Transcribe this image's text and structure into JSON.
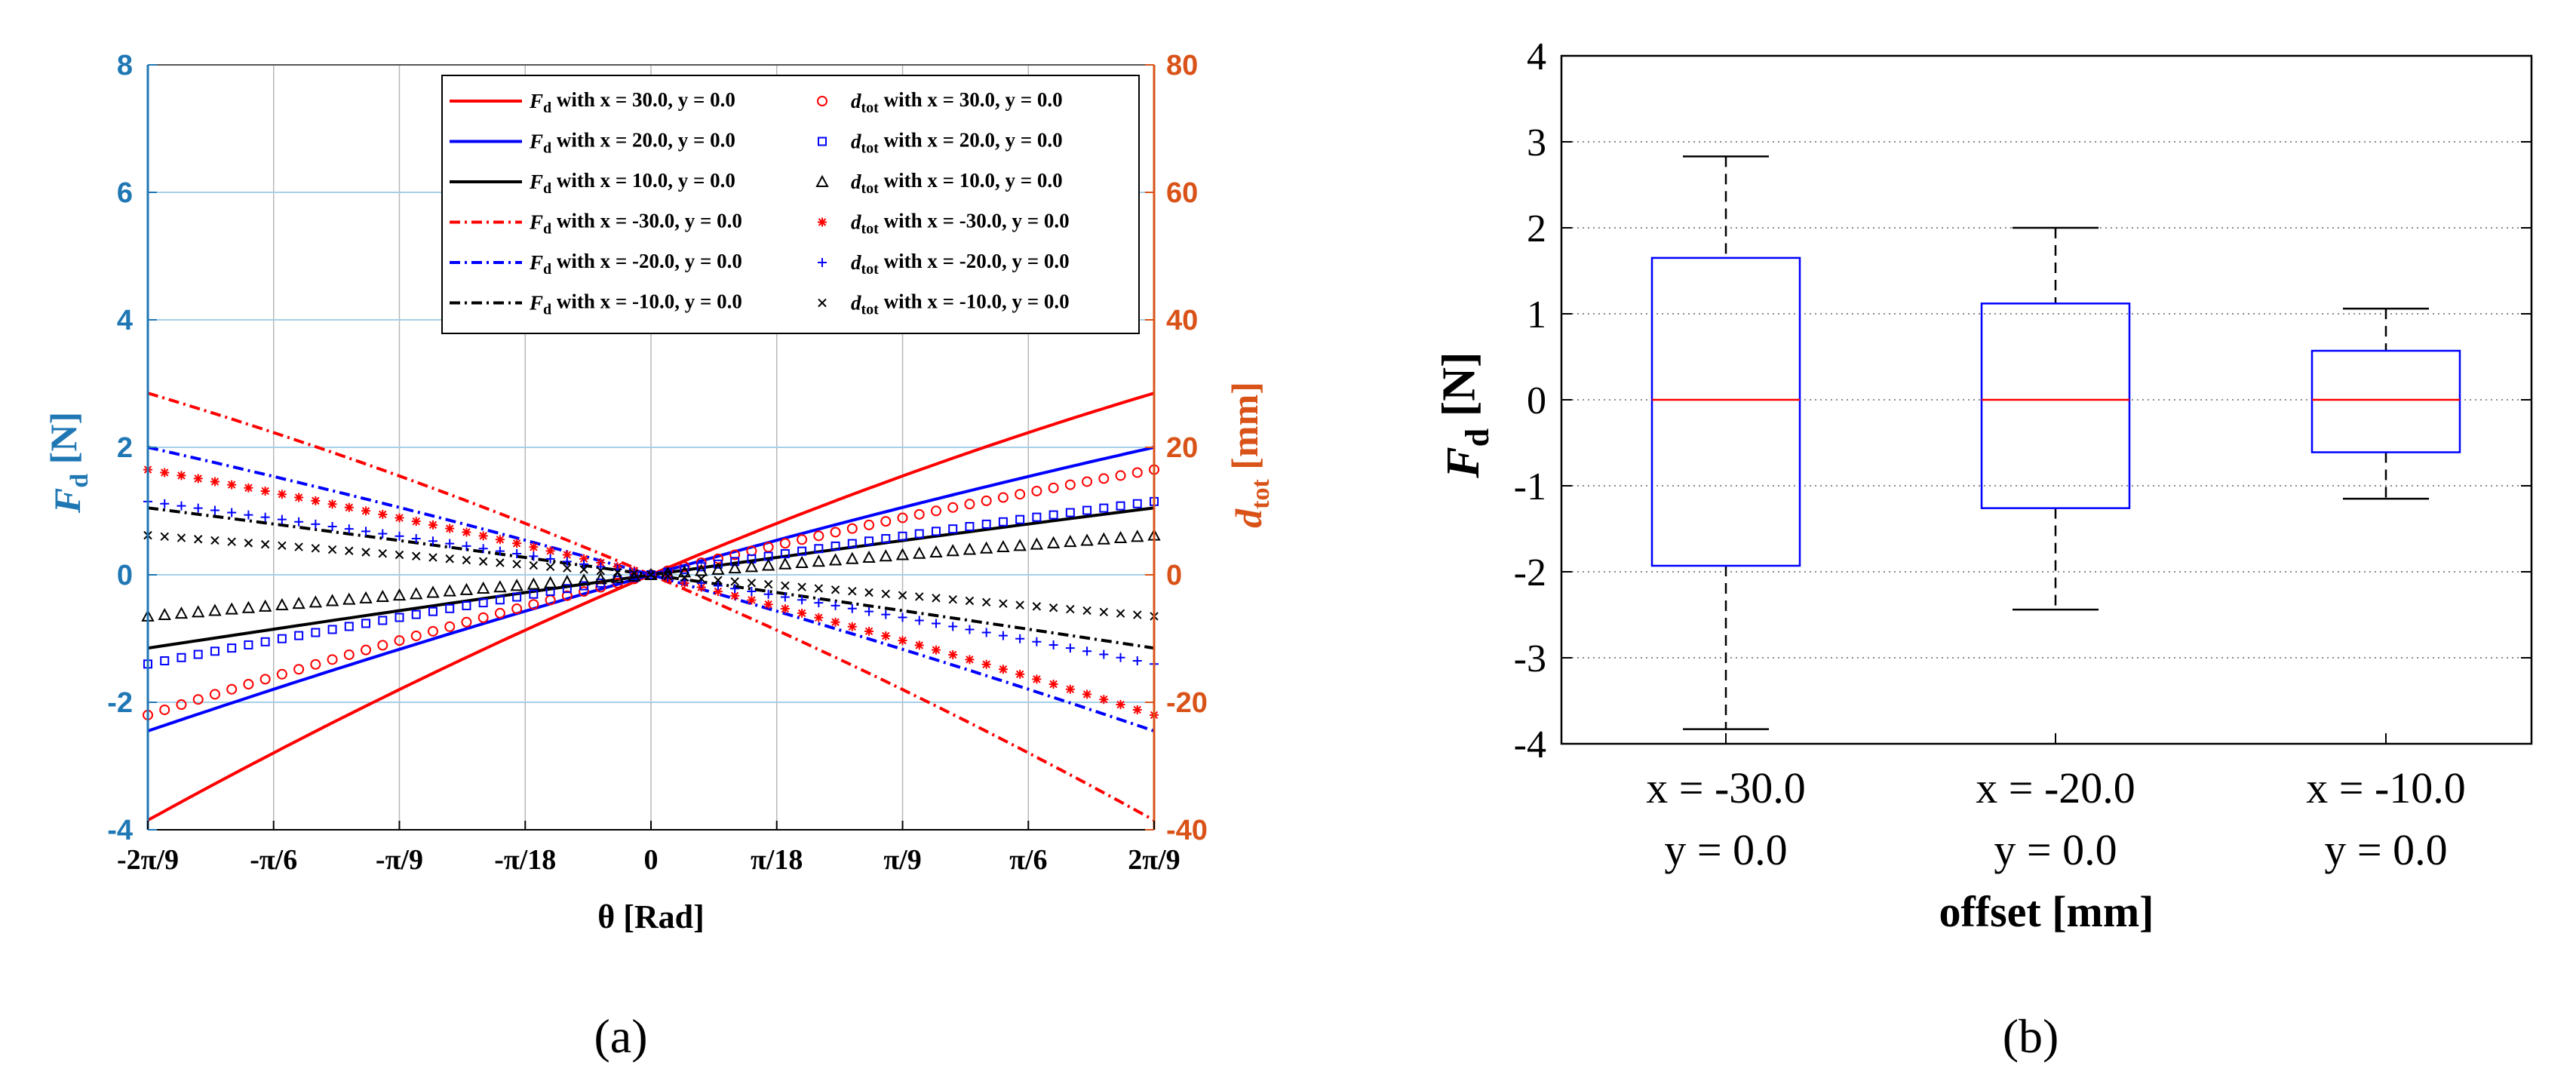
{
  "chart_data": [
    {
      "type": "line",
      "panel_label": "(a)",
      "xlabel": "θ [Rad]",
      "ylabel_left": {
        "main": "F",
        "sub": "d",
        "unit": " [N]"
      },
      "ylabel_right": {
        "main": "d",
        "sub": "tot",
        "unit": " [mm]"
      },
      "xlim": [
        -0.6981,
        0.6981
      ],
      "ylim_left": [
        -4,
        8
      ],
      "ylim_right": [
        -40,
        80
      ],
      "grid": true,
      "legend_position": "top-right",
      "colors": {
        "left_axis": "#1f77b4",
        "right_axis": "#d95319",
        "red": "#ff0000",
        "blue": "#0000ff",
        "black": "#000000",
        "grid": "#a6cfe8"
      },
      "x_ticks": [
        {
          "value": -0.6981,
          "label": "-2π/9"
        },
        {
          "value": -0.5236,
          "label": "-π/6"
        },
        {
          "value": -0.3491,
          "label": "-π/9"
        },
        {
          "value": -0.1745,
          "label": "-π/18"
        },
        {
          "value": 0,
          "label": "0"
        },
        {
          "value": 0.1745,
          "label": "π/18"
        },
        {
          "value": 0.3491,
          "label": "π/9"
        },
        {
          "value": 0.5236,
          "label": "π/6"
        },
        {
          "value": 0.6981,
          "label": "2π/9"
        }
      ],
      "y_ticks_left": [
        "-4",
        "-2",
        "0",
        "2",
        "4",
        "6",
        "8"
      ],
      "y_ticks_right": [
        "-40",
        "-20",
        "0",
        "20",
        "40",
        "60",
        "80"
      ],
      "series": [
        {
          "name_main": "F",
          "name_sub": "d",
          "name_rest": " with  x = 30.0, y = 0.0",
          "axis": "left",
          "color": "red",
          "style": "solid",
          "values_at_ends": [
            -3.85,
            2.85
          ]
        },
        {
          "name_main": "F",
          "name_sub": "d",
          "name_rest": " with  x = 20.0, y = 0.0",
          "axis": "left",
          "color": "blue",
          "style": "solid",
          "values_at_ends": [
            -2.45,
            2.0
          ]
        },
        {
          "name_main": "F",
          "name_sub": "d",
          "name_rest": " with x = 10.0, y = 0.0",
          "axis": "left",
          "color": "black",
          "style": "solid",
          "values_at_ends": [
            -1.15,
            1.05
          ]
        },
        {
          "name_main": "F",
          "name_sub": "d",
          "name_rest": " with x = -30.0, y = 0.0",
          "axis": "left",
          "color": "red",
          "style": "dashdot",
          "values_at_ends": [
            2.85,
            -3.85
          ]
        },
        {
          "name_main": "F",
          "name_sub": "d",
          "name_rest": " with x = -20.0, y = 0.0",
          "axis": "left",
          "color": "blue",
          "style": "dashdot",
          "values_at_ends": [
            2.0,
            -2.45
          ]
        },
        {
          "name_main": "F",
          "name_sub": "d",
          "name_rest": " with x = -10.0, y = 0.0",
          "axis": "left",
          "color": "black",
          "style": "dashdot",
          "values_at_ends": [
            1.05,
            -1.15
          ]
        },
        {
          "name_main": "d",
          "name_sub": "tot",
          "name_rest": " with  x = 30.0, y = 0.0",
          "axis": "right",
          "color": "red",
          "marker": "circle",
          "values_at_ends": [
            -22,
            16.5
          ]
        },
        {
          "name_main": "d",
          "name_sub": "tot",
          "name_rest": " with  x = 20.0, y = 0.0",
          "axis": "right",
          "color": "blue",
          "marker": "square",
          "values_at_ends": [
            -14,
            11.5
          ]
        },
        {
          "name_main": "d",
          "name_sub": "tot",
          "name_rest": " with x = 10.0, y = 0.0",
          "axis": "right",
          "color": "black",
          "marker": "triangle",
          "values_at_ends": [
            -6.5,
            6.2
          ]
        },
        {
          "name_main": "d",
          "name_sub": "tot",
          "name_rest": " with x = -30.0, y = 0.0",
          "axis": "right",
          "color": "red",
          "marker": "asterisk",
          "values_at_ends": [
            16.5,
            -22
          ]
        },
        {
          "name_main": "d",
          "name_sub": "tot",
          "name_rest": " with x = -20.0, y = 0.0",
          "axis": "right",
          "color": "blue",
          "marker": "plus",
          "values_at_ends": [
            11.5,
            -14
          ]
        },
        {
          "name_main": "d",
          "name_sub": "tot",
          "name_rest": " with x = -10.0, y = 0.0",
          "axis": "right",
          "color": "black",
          "marker": "cross",
          "values_at_ends": [
            6.2,
            -6.5
          ]
        }
      ]
    },
    {
      "type": "box",
      "panel_label": "(b)",
      "xlabel": "offset [mm]",
      "ylabel": {
        "main": "F",
        "sub": "d",
        "unit": " [N]"
      },
      "ylim": [
        -4,
        4
      ],
      "y_ticks": [
        "-4",
        "-3",
        "-2",
        "-1",
        "0",
        "1",
        "2",
        "3",
        "4"
      ],
      "grid": "y-dotted",
      "colors": {
        "box": "#0000ff",
        "median": "#ff0000",
        "whisker": "#000000"
      },
      "categories": [
        {
          "line1": "x = -30.0",
          "line2": "y = 0.0"
        },
        {
          "line1": "x = -20.0",
          "line2": "y = 0.0"
        },
        {
          "line1": "x = -10.0",
          "line2": "y = 0.0"
        }
      ],
      "boxes": [
        {
          "min": -3.83,
          "q1": -1.93,
          "median": 0.0,
          "q3": 1.65,
          "max": 2.83
        },
        {
          "min": -2.44,
          "q1": -1.26,
          "median": 0.0,
          "q3": 1.12,
          "max": 2.0
        },
        {
          "min": -1.15,
          "q1": -0.61,
          "median": 0.0,
          "q3": 0.57,
          "max": 1.06
        }
      ]
    }
  ]
}
